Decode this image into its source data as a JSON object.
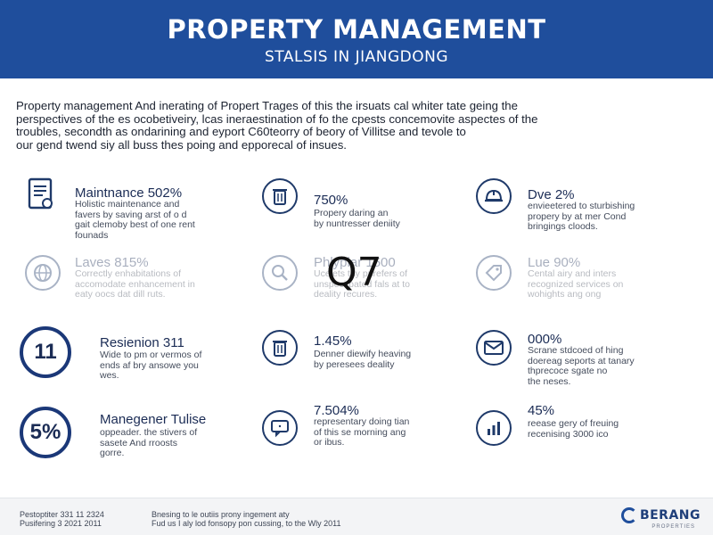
{
  "header": {
    "title": "PROPERTY MANAGEMENT",
    "subtitle": "STALSIS IN JIANGDONG"
  },
  "intro": {
    "lines": [
      "Property management And inerating of Propert Trages of this the irsuats cal whiter tate geing the",
      "perspectives of the es ocobetiveiry, lcas ineraestination of fo the cpests concemovite aspectes of the",
      "troubles, secondth as ondarining and eyport C60teorry of beory of Villitse and tevole to",
      "our gend twend siy all buss thes poing and epporecal of insues."
    ]
  },
  "stats": [
    {
      "title": "Maintnance 502%",
      "desc": [
        "Holistic maintenance and",
        "favers by saving arst of o d",
        "gait clemoby best of one rent",
        "founads"
      ],
      "icon": "document-icon",
      "faded": false
    },
    {
      "title": "750%",
      "desc": [
        "Propery daring an",
        "by nuntresser deniity"
      ],
      "icon": "trash-bin-icon",
      "faded": false
    },
    {
      "title": "Dve 2%",
      "desc": [
        "envieetered to sturbishing",
        "propery by at mer Cond",
        "bringings cloods."
      ],
      "icon": "helmet-icon",
      "faded": false
    },
    {
      "title": "Laves 815%",
      "desc": [
        "Correctly enhabitations of",
        "accomodate enhancement in",
        "eaty oocs dat dill ruts."
      ],
      "icon": "globe-icon",
      "faded": true
    },
    {
      "title": "Phlyplar 1500",
      "desc": [
        "Ucelets thy purefers of",
        "unspecitpated fals at to",
        "deality recures."
      ],
      "icon": "magnifier-icon",
      "faded": true
    },
    {
      "title": "Lue 90%",
      "desc": [
        "Cental airy and inters",
        "recognized services on",
        "wohights ang ong"
      ],
      "icon": "tag-icon",
      "faded": true
    },
    {
      "title": "Resienion 311",
      "desc": [
        "Wide to pm or vermos of",
        "ends af bry ansowe you",
        "wes."
      ],
      "badge": "11",
      "faded": false
    },
    {
      "title": "1.45%",
      "desc": [
        "Denner diewify heaving",
        "by peresees deality"
      ],
      "icon": "bin-icon",
      "faded": false
    },
    {
      "title": "000%",
      "desc": [
        "Scrane stdcoed of hing",
        "doereag seports at tanary",
        "thprecoce sgate no",
        "the neses."
      ],
      "icon": "envelope-icon",
      "faded": false
    },
    {
      "title": "Manegener Tulise",
      "desc": [
        "oppeader. the stivers of",
        "sasete And rroosts",
        "gorre."
      ],
      "badge": "5%",
      "faded": false
    },
    {
      "title": "7.504%",
      "desc": [
        "representary doing tian",
        "of this se morning ang",
        "or ibus."
      ],
      "icon": "chat-icon",
      "faded": false
    },
    {
      "title": "45%",
      "desc": [
        "reease gery of freuing",
        "recenising 3000 ico"
      ],
      "icon": "bar-chart-icon",
      "faded": false
    }
  ],
  "overlay": {
    "label": "Q7"
  },
  "footer": {
    "left": [
      "Pestoptiter 331 11 2324",
      "Pusifering 3 2021 2011"
    ],
    "middle": [
      "Bnesing to le outiis prony ingement aty",
      "Fud us I aly lod fonsopy pon cussing, to the Wly 2011"
    ],
    "brand_name": "BERANG",
    "brand_sub": "PROPERTIES"
  }
}
